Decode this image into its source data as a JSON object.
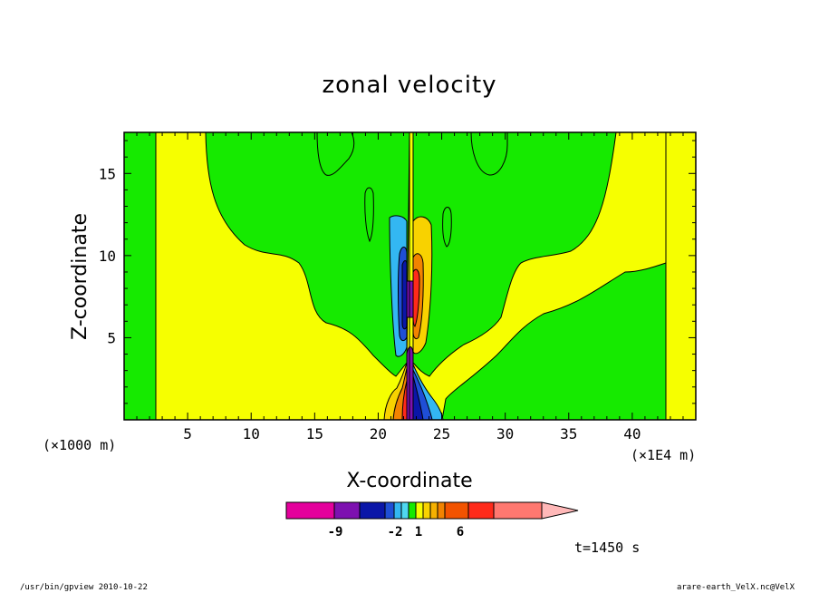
{
  "chart_data": {
    "type": "heatmap",
    "title": "zonal velocity",
    "xlabel": "X-coordinate",
    "ylabel": "Z-coordinate",
    "x_unit_left": "(×1000 m)",
    "x_unit_right": "(×1E4 m)",
    "xlim": [
      0,
      45
    ],
    "ylim": [
      0,
      17.5
    ],
    "x_ticks": [
      5,
      10,
      15,
      20,
      25,
      30,
      35,
      40
    ],
    "y_ticks": [
      5,
      10,
      15
    ],
    "colorbar": {
      "colors": [
        "#e4009c",
        "#7d11b0",
        "#0a16a8",
        "#1f4fd6",
        "#33b7f2",
        "#4fd7f0",
        "#16ea00",
        "#f6ff00",
        "#f8d200",
        "#f6b100",
        "#f28300",
        "#f25300",
        "#ff2a1a",
        "#ff7870",
        "#ffb8b8"
      ],
      "labels": [
        "-9",
        "-2",
        "1",
        "6"
      ]
    },
    "regions": [
      {
        "name": "green",
        "value": "0 to 1",
        "color": "#16ea00"
      },
      {
        "name": "yellow",
        "value": "-1 to 0",
        "color": "#f6ff00"
      }
    ],
    "time_label": "t=1450 s"
  },
  "footer": {
    "left": "/usr/bin/gpview  2010-10-22",
    "right": "arare-earth_VelX.nc@VelX"
  }
}
